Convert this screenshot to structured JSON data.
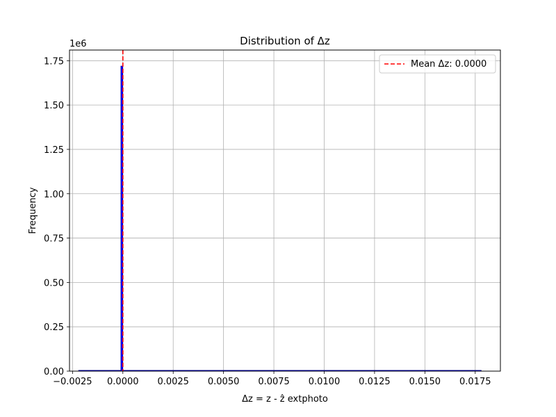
{
  "chart_data": {
    "type": "bar",
    "title": "Distribution of Δz",
    "xlabel": "Δz = z - ẑ extphoto",
    "ylabel": "Frequency",
    "y_offset_text": "1e6",
    "xlim": [
      -0.00265,
      0.01875
    ],
    "ylim": [
      0,
      1.81
    ],
    "x_ticks": [
      -0.0025,
      0.0,
      0.0025,
      0.005,
      0.0075,
      0.01,
      0.0125,
      0.015,
      0.0175
    ],
    "x_tick_labels": [
      "−0.0025",
      "0.0000",
      "0.0025",
      "0.0050",
      "0.0075",
      "0.0100",
      "0.0125",
      "0.0150",
      "0.0175"
    ],
    "y_ticks": [
      0,
      0.25,
      0.5,
      0.75,
      1.0,
      1.25,
      1.5,
      1.75
    ],
    "y_tick_labels": [
      "0.00",
      "0.25",
      "0.50",
      "0.75",
      "1.00",
      "1.25",
      "1.50",
      "1.75"
    ],
    "grid": true,
    "bins": [
      {
        "x0": -0.0022,
        "x1": -0.0001,
        "value": 0.0
      },
      {
        "x0": -0.0001,
        "x1": 0.0,
        "value": 1.72
      },
      {
        "x0": 0.0,
        "x1": 0.0178,
        "value": 0.0
      }
    ],
    "hist_color": "#0000ff",
    "mean_line": {
      "x": 0.0,
      "label": "Mean Δz: 0.0000",
      "color": "#ff0000"
    },
    "legend_position": "top-right"
  }
}
